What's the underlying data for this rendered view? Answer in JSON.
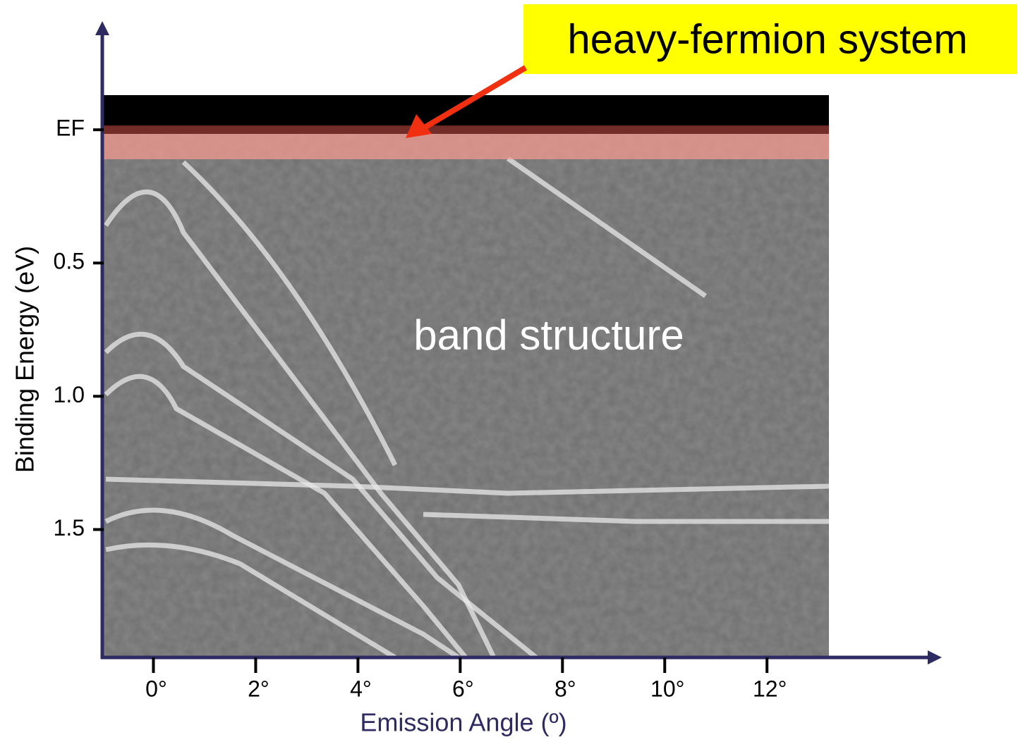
{
  "chart_data": {
    "type": "image",
    "xlabel": "Emission Angle (º)",
    "ylabel": "Binding Energy (eV)",
    "xlim": [
      -1,
      15.35
    ],
    "xticks": [
      {
        "value": 0,
        "label": "0°"
      },
      {
        "value": 2,
        "label": "2°"
      },
      {
        "value": 4,
        "label": "4°"
      },
      {
        "value": 6,
        "label": "6°"
      },
      {
        "value": 8,
        "label": "8°"
      },
      {
        "value": 10,
        "label": "10°"
      },
      {
        "value": 12,
        "label": "12°"
      }
    ],
    "ylim": [
      -0.13,
      1.98
    ],
    "yticks": [
      {
        "value": 0,
        "label": "EF"
      },
      0.5,
      {
        "value": 1,
        "label": "1.0"
      },
      1.5
    ],
    "annotations": [
      "heavy-fermion system",
      "band structure"
    ]
  }
}
